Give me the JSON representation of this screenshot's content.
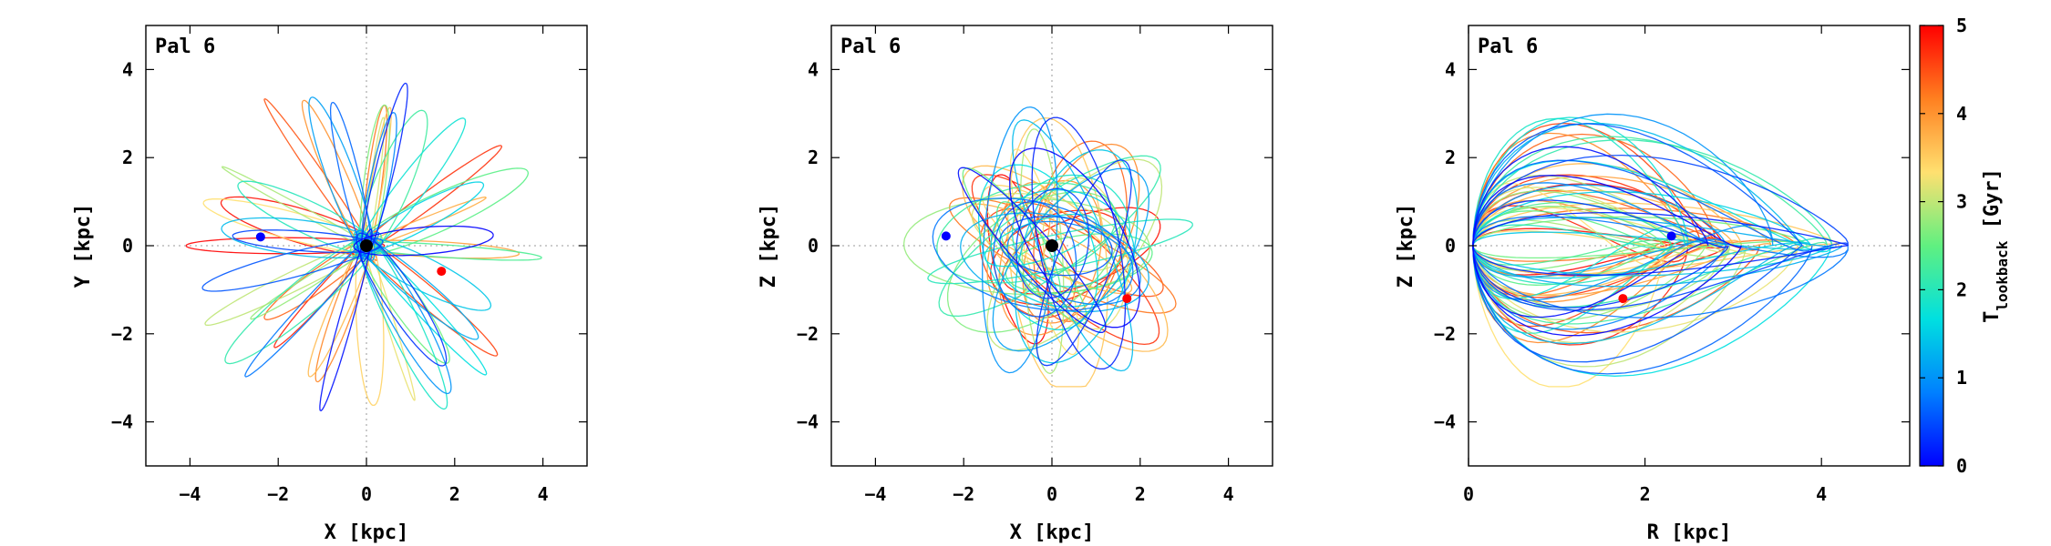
{
  "chart_data": [
    {
      "type": "line",
      "panel": "XY",
      "title": "Pal 6",
      "xlabel": "X [kpc]",
      "ylabel": "Y [kpc]",
      "xlim": [
        -5,
        5
      ],
      "ylim": [
        -5,
        5
      ],
      "xticks": [
        -4,
        -2,
        0,
        2,
        4
      ],
      "yticks": [
        -4,
        -2,
        0,
        2,
        4
      ],
      "grid": false,
      "zero_lines": true,
      "galactic_center": {
        "x": 0,
        "y": 0,
        "color": "#000000"
      },
      "present_position": {
        "x": -2.4,
        "y": 0.2,
        "color": "#0000ff"
      },
      "start_position": {
        "x": 1.7,
        "y": -0.58,
        "color": "#ff0000"
      },
      "orbit_extent": {
        "x": [
          -4.2,
          4.4
        ],
        "y": [
          -4.0,
          3.9
        ]
      }
    },
    {
      "type": "line",
      "panel": "XZ",
      "title": "Pal 6",
      "xlabel": "X [kpc]",
      "ylabel": "Z [kpc]",
      "xlim": [
        -5,
        5
      ],
      "ylim": [
        -5,
        5
      ],
      "xticks": [
        -4,
        -2,
        0,
        2,
        4
      ],
      "yticks": [
        -4,
        -2,
        0,
        2,
        4
      ],
      "grid": false,
      "zero_lines": true,
      "galactic_center": {
        "x": 0,
        "y": 0,
        "color": "#000000"
      },
      "present_position": {
        "x": -2.4,
        "y": 0.22,
        "color": "#0000ff"
      },
      "start_position": {
        "x": 1.7,
        "y": -1.2,
        "color": "#ff0000"
      },
      "orbit_extent": {
        "x": [
          -4.0,
          4.4
        ],
        "y": [
          -3.2,
          3.2
        ]
      }
    },
    {
      "type": "line",
      "panel": "RZ",
      "title": "Pal 6",
      "xlabel": "R [kpc]",
      "ylabel": "Z [kpc]",
      "xlim": [
        0,
        5
      ],
      "ylim": [
        -5,
        5
      ],
      "xticks": [
        0,
        2,
        4
      ],
      "yticks": [
        -4,
        -2,
        0,
        2,
        4
      ],
      "grid": false,
      "zero_lines": true,
      "present_position": {
        "x": 2.3,
        "y": 0.22,
        "color": "#0000ff"
      },
      "start_position": {
        "x": 1.75,
        "y": -1.2,
        "color": "#ff0000"
      },
      "orbit_extent": {
        "x": [
          0,
          4.3
        ],
        "y": [
          -3.2,
          3.2
        ]
      }
    }
  ],
  "colorbar": {
    "label": "T_lookback [Gyr]",
    "label_main": "T",
    "label_sub": "lookback",
    "label_unit": " [Gyr]",
    "min": 0,
    "max": 5,
    "ticks": [
      0,
      1,
      2,
      3,
      4,
      5
    ],
    "colormap": "jet",
    "colors": [
      "#0000ff",
      "#0080ff",
      "#00e0e0",
      "#60f080",
      "#ffe070",
      "#ff8020",
      "#ff0000"
    ]
  }
}
